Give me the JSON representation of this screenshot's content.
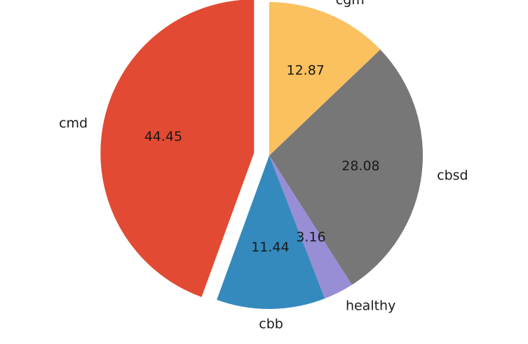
{
  "chart_data": {
    "type": "pie",
    "categories": [
      "cgm",
      "cbsd",
      "healthy",
      "cbb",
      "cmd"
    ],
    "values": [
      12.87,
      28.08,
      3.16,
      11.44,
      44.45
    ],
    "value_labels": [
      "12.87",
      "28.08",
      "3.16",
      "11.44",
      "44.45"
    ],
    "colors": [
      "#fbc15e",
      "#777777",
      "#988ed5",
      "#348abd",
      "#e24a33"
    ],
    "exploded": [
      "cmd"
    ],
    "start": "top, clockwise",
    "legend": "none",
    "title": ""
  }
}
